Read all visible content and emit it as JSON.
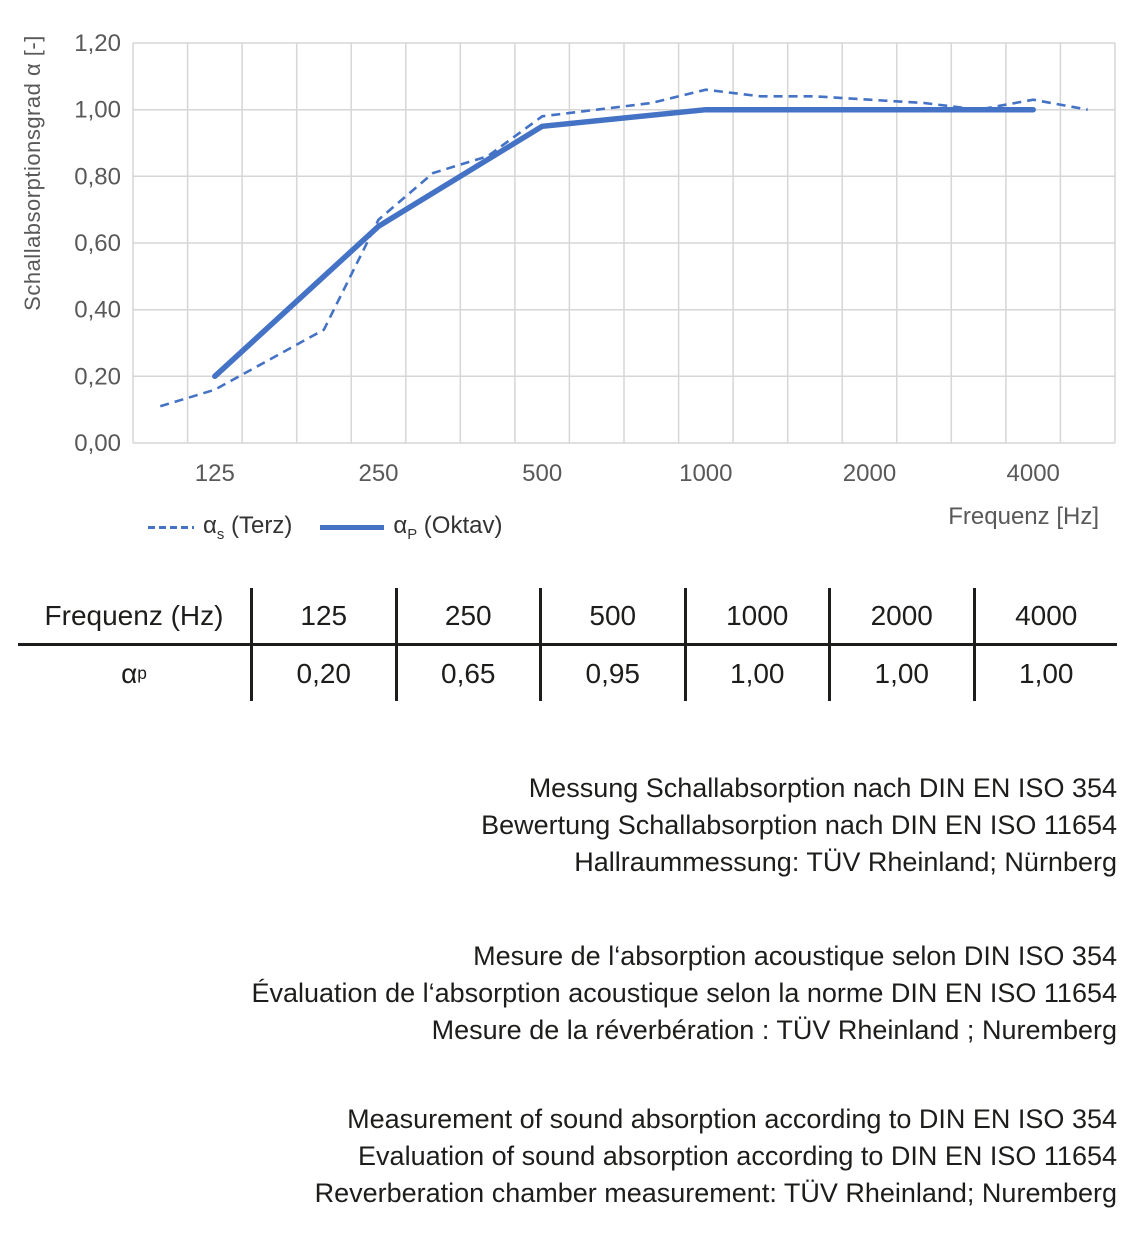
{
  "colors": {
    "accent_blue": "#4472c4",
    "grid_gray": "#d6d6d6",
    "axis_text_gray": "#595959",
    "body_text": "#1d1d1b"
  },
  "chart_data": {
    "type": "line",
    "title": "",
    "xlabel": "Frequenz [Hz]",
    "ylabel": "Schallabsorptionsgrad α [-]",
    "ylim": [
      0,
      1.2
    ],
    "x_scale": "logarithmic third-octave categories, evenly spaced",
    "grid": true,
    "legend_position": "bottom-left",
    "categories": [
      100,
      125,
      160,
      200,
      250,
      315,
      400,
      500,
      630,
      800,
      1000,
      1250,
      1600,
      2000,
      2500,
      3150,
      4000,
      5000
    ],
    "y_tick_values": [
      0,
      0.2,
      0.4,
      0.6,
      0.8,
      1.0,
      1.2
    ],
    "y_tick_labels": [
      "0,00",
      "0,20",
      "0,40",
      "0,60",
      "0,80",
      "1,00",
      "1,20"
    ],
    "x_tick_indices": [
      1,
      4,
      7,
      10,
      13,
      16
    ],
    "x_tick_labels": [
      "125",
      "250",
      "500",
      "1000",
      "2000",
      "4000"
    ],
    "series": [
      {
        "id": "alpha-s-terz",
        "name": "αs (Terz)",
        "line_style": "dashed",
        "color": "#4472c4",
        "values": [
          0.11,
          0.16,
          0.25,
          0.34,
          0.67,
          0.81,
          0.86,
          0.98,
          1.0,
          1.02,
          1.06,
          1.04,
          1.04,
          1.03,
          1.02,
          1.0,
          1.03,
          1.0
        ]
      },
      {
        "id": "alpha-p-oktav",
        "name": "αP (Oktav)",
        "line_style": "solid",
        "color": "#4472c4",
        "category_indices": [
          1,
          4,
          7,
          10,
          13,
          16
        ],
        "values": [
          0.2,
          0.65,
          0.95,
          1.0,
          1.0,
          1.0
        ]
      }
    ]
  },
  "legend": {
    "items": [
      {
        "symbol": "α",
        "sub": "s",
        "rest": " (Terz)"
      },
      {
        "symbol": "α",
        "sub": "P",
        "rest": " (Oktav)"
      }
    ]
  },
  "table": {
    "header_label": "Frequenz (Hz)",
    "row_symbol": "α",
    "row_sub": "p",
    "frequencies": [
      "125",
      "250",
      "500",
      "1000",
      "2000",
      "4000"
    ],
    "values": [
      "0,20",
      "0,65",
      "0,95",
      "1,00",
      "1,00",
      "1,00"
    ]
  },
  "notes": {
    "de": [
      "Messung Schallabsorption nach DIN EN ISO 354",
      "Bewertung Schallabsorption nach DIN EN ISO 11654",
      "Hallraummessung: TÜV Rheinland; Nürnberg"
    ],
    "fr": [
      "Mesure de l‘absorption acoustique selon DIN ISO 354",
      "Évaluation de l‘absorption acoustique selon la norme DIN EN ISO 11654",
      "Mesure de la réverbération : TÜV Rheinland ; Nuremberg"
    ],
    "en": [
      "Measurement of sound absorption according to DIN EN ISO 354",
      "Evaluation of sound absorption according to DIN EN ISO 11654",
      "Reverberation chamber measurement: TÜV Rheinland; Nuremberg"
    ]
  }
}
